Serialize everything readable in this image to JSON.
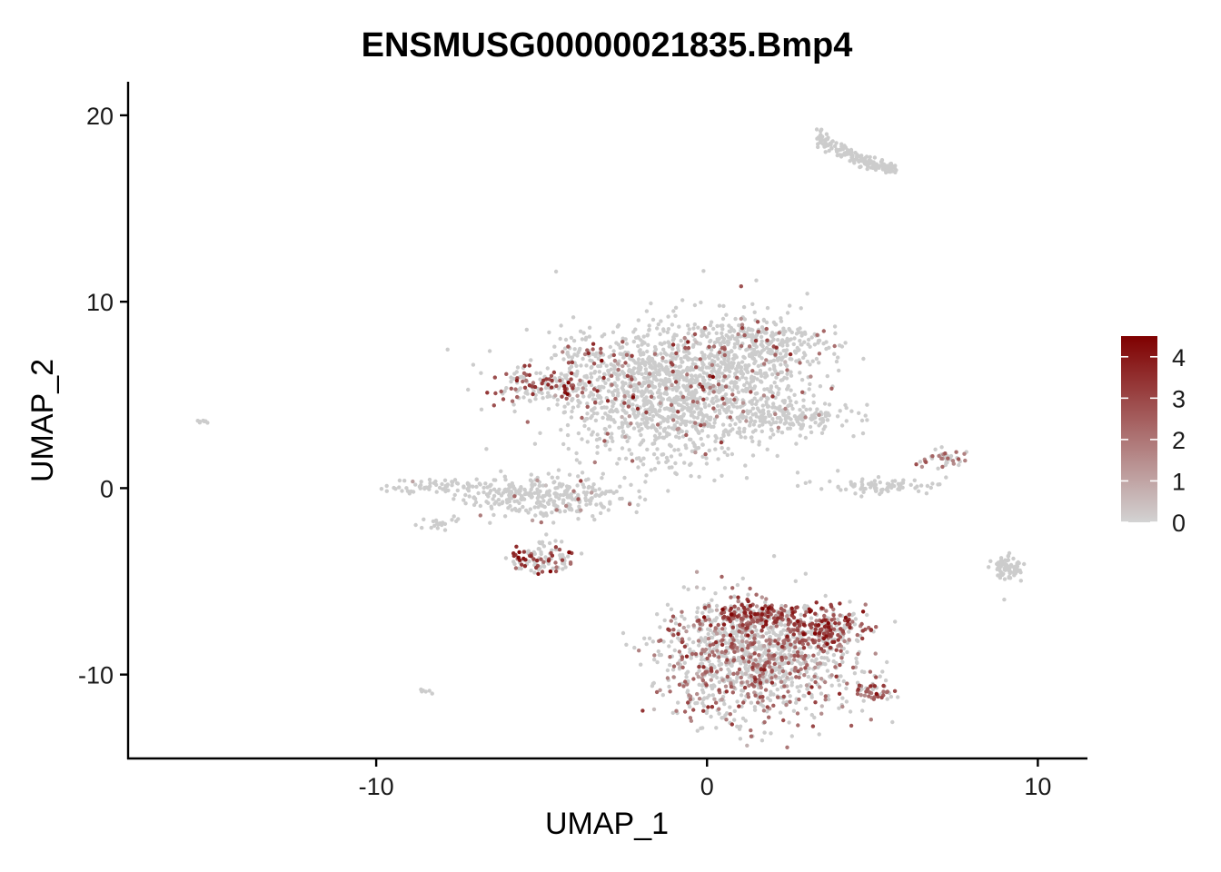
{
  "chart_data": {
    "type": "scatter",
    "title": "ENSMUSG00000021835.Bmp4",
    "xlabel": "UMAP_1",
    "ylabel": "UMAP_2",
    "xlim": [
      -17.5,
      11.5
    ],
    "ylim": [
      -14.5,
      21.8
    ],
    "xticks": [
      -10,
      0,
      10
    ],
    "xtick_labels": [
      "-10",
      "0",
      "10"
    ],
    "yticks": [
      -10,
      0,
      10,
      20
    ],
    "ytick_labels": [
      "-10",
      "0",
      "10",
      "20"
    ],
    "grid": false,
    "legend": {
      "placement": "right",
      "type": "colorbar",
      "range": [
        0,
        4.5
      ],
      "ticks": [
        0,
        1,
        2,
        3,
        4
      ],
      "tick_labels": [
        "0",
        "1",
        "2",
        "3",
        "4"
      ],
      "color_low": "#d3d3d3",
      "color_high": "#7f0000"
    },
    "colors": {
      "low": "#cccccc",
      "high": "#7f0000"
    },
    "clusters": [
      {
        "name": "top-arc",
        "cx": 4.4,
        "cy": 18.0,
        "sx": 0.75,
        "sy": 0.75,
        "n": 160,
        "expr_frac": 0.0,
        "expr_mean": 0.5,
        "arc": true
      },
      {
        "name": "central-cloud",
        "cx": -0.8,
        "cy": 5.2,
        "sx": 1.9,
        "sy": 1.8,
        "n": 1600,
        "expr_frac": 0.06,
        "expr_mean": 2.2
      },
      {
        "name": "central-top-right",
        "cx": 1.6,
        "cy": 7.8,
        "sx": 1.0,
        "sy": 0.8,
        "n": 250,
        "expr_frac": 0.12,
        "expr_mean": 2.3
      },
      {
        "name": "central-extension-right",
        "cx": 2.5,
        "cy": 3.8,
        "sx": 0.9,
        "sy": 0.35,
        "n": 120,
        "expr_frac": 0.04,
        "expr_mean": 1.5
      },
      {
        "name": "left-arm-upper",
        "cx": -5.1,
        "cy": 5.5,
        "sx": 0.9,
        "sy": 0.45,
        "n": 120,
        "expr_frac": 0.45,
        "expr_mean": 2.7
      },
      {
        "name": "left-arm-top",
        "cx": -3.8,
        "cy": 7.0,
        "sx": 0.5,
        "sy": 0.4,
        "n": 40,
        "expr_frac": 0.35,
        "expr_mean": 2.5
      },
      {
        "name": "left-cluster-main",
        "cx": -5.0,
        "cy": -0.5,
        "sx": 1.2,
        "sy": 0.55,
        "n": 320,
        "expr_frac": 0.03,
        "expr_mean": 1.8
      },
      {
        "name": "left-cluster-tail",
        "cx": -8.2,
        "cy": 0.1,
        "sx": 0.7,
        "sy": 0.2,
        "n": 60,
        "expr_frac": 0.05,
        "expr_mean": 2.0
      },
      {
        "name": "left-cluster-lower",
        "cx": -5.0,
        "cy": -3.8,
        "sx": 0.5,
        "sy": 0.45,
        "n": 110,
        "expr_frac": 0.4,
        "expr_mean": 3.0
      },
      {
        "name": "left-small-stripe",
        "cx": -8.1,
        "cy": -1.9,
        "sx": 0.35,
        "sy": 0.15,
        "n": 20,
        "expr_frac": 0.0,
        "expr_mean": 0.0
      },
      {
        "name": "bottom-cluster-main",
        "cx": 1.5,
        "cy": -9.2,
        "sx": 1.45,
        "sy": 1.55,
        "n": 1200,
        "expr_frac": 0.35,
        "expr_mean": 2.0
      },
      {
        "name": "bottom-cluster-top",
        "cx": 1.4,
        "cy": -6.8,
        "sx": 1.0,
        "sy": 0.4,
        "n": 200,
        "expr_frac": 0.7,
        "expr_mean": 2.9
      },
      {
        "name": "bottom-cluster-right",
        "cx": 3.6,
        "cy": -7.6,
        "sx": 0.55,
        "sy": 0.45,
        "n": 160,
        "expr_frac": 0.6,
        "expr_mean": 2.8
      },
      {
        "name": "bottom-cluster-tail",
        "cx": 5.1,
        "cy": -10.9,
        "sx": 0.3,
        "sy": 0.3,
        "n": 40,
        "expr_frac": 0.55,
        "expr_mean": 2.6
      },
      {
        "name": "right-stripe",
        "cx": 5.3,
        "cy": 0.1,
        "sx": 1.0,
        "sy": 0.2,
        "n": 80,
        "expr_frac": 0.0,
        "expr_mean": 0.0
      },
      {
        "name": "right-stripe-upper",
        "cx": 7.1,
        "cy": 1.6,
        "sx": 0.4,
        "sy": 0.3,
        "n": 40,
        "expr_frac": 0.4,
        "expr_mean": 2.5
      },
      {
        "name": "far-right-blob",
        "cx": 9.1,
        "cy": -4.3,
        "sx": 0.2,
        "sy": 0.35,
        "n": 70,
        "expr_frac": 0.0,
        "expr_mean": 0.0
      },
      {
        "name": "far-left-dot",
        "cx": -15.2,
        "cy": 3.6,
        "sx": 0.08,
        "sy": 0.06,
        "n": 8,
        "expr_frac": 0.0,
        "expr_mean": 0.0
      },
      {
        "name": "bottom-left-dot",
        "cx": -8.5,
        "cy": -10.9,
        "sx": 0.08,
        "sy": 0.06,
        "n": 6,
        "expr_frac": 0.0,
        "expr_mean": 0.0
      },
      {
        "name": "center-right-dot",
        "cx": 3.6,
        "cy": 4.0,
        "sx": 0.15,
        "sy": 0.06,
        "n": 12,
        "expr_frac": 0.1,
        "expr_mean": 2.0
      }
    ]
  }
}
